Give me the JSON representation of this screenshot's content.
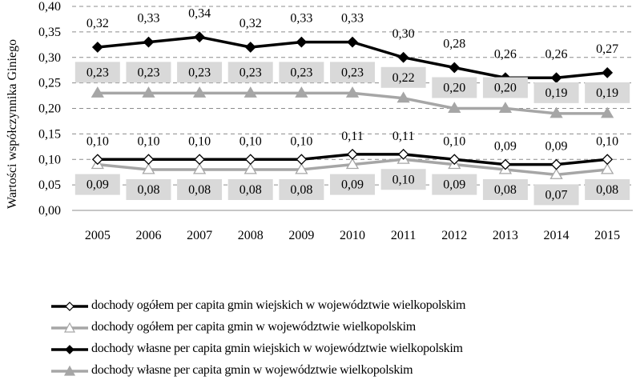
{
  "chart_data": {
    "type": "line",
    "ylabel": "Wartości współczynnika Giniego",
    "xlabel": "",
    "categories": [
      "2005",
      "2006",
      "2007",
      "2008",
      "2009",
      "2010",
      "2011",
      "2012",
      "2013",
      "2014",
      "2015"
    ],
    "ylim": [
      0,
      0.4
    ],
    "yticks": [
      "0,00",
      "0,05",
      "0,10",
      "0,15",
      "0,20",
      "0,25",
      "0,30",
      "0,35",
      "0,40"
    ],
    "grid": "horizontal dashed",
    "legend_position": "bottom",
    "series": [
      {
        "name": "dochody ogółem per capita gmin wiejskich w województwie wielkopolskim",
        "color": "#000000",
        "marker": "diamond-open",
        "values": [
          0.1,
          0.1,
          0.1,
          0.1,
          0.1,
          0.11,
          0.11,
          0.1,
          0.09,
          0.09,
          0.1
        ],
        "labels": [
          "0,10",
          "0,10",
          "0,10",
          "0,10",
          "0,10",
          "0,11",
          "0,11",
          "0,10",
          "0,09",
          "0,09",
          "0,10"
        ]
      },
      {
        "name": "dochody ogółem per capita gmin w województwie wielkopolskim",
        "color": "#a6a6a6",
        "marker": "triangle-open",
        "values": [
          0.09,
          0.08,
          0.08,
          0.08,
          0.08,
          0.09,
          0.1,
          0.09,
          0.08,
          0.07,
          0.08
        ],
        "labels": [
          "0,09",
          "0,08",
          "0,08",
          "0,08",
          "0,08",
          "0,09",
          "0,10",
          "0,09",
          "0,08",
          "0,07",
          "0,08"
        ]
      },
      {
        "name": "dochody własne per capita gmin wiejskich w województwie wielkopolskim",
        "color": "#000000",
        "marker": "diamond-filled",
        "values": [
          0.32,
          0.33,
          0.34,
          0.32,
          0.33,
          0.33,
          0.3,
          0.28,
          0.26,
          0.26,
          0.27
        ],
        "labels": [
          "0,32",
          "0,33",
          "0,34",
          "0,32",
          "0,33",
          "0,33",
          "0,30",
          "0,28",
          "0,26",
          "0,26",
          "0,27"
        ]
      },
      {
        "name": "dochody własne per capita gmin w województwie wielkopolskim",
        "color": "#a6a6a6",
        "marker": "triangle-filled",
        "values": [
          0.23,
          0.23,
          0.23,
          0.23,
          0.23,
          0.23,
          0.22,
          0.2,
          0.2,
          0.19,
          0.19
        ],
        "labels": [
          "0,23",
          "0,23",
          "0,23",
          "0,23",
          "0,23",
          "0,23",
          "0,22",
          "0,20",
          "0,20",
          "0,19",
          "0,19"
        ]
      }
    ]
  }
}
